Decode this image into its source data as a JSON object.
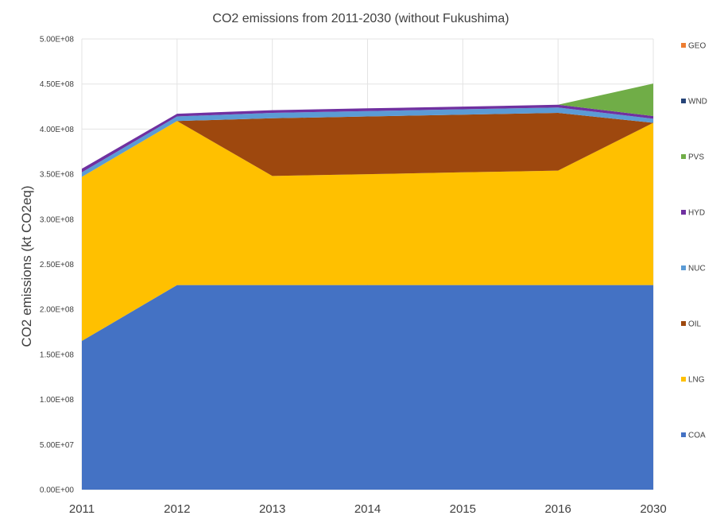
{
  "chart_data": {
    "type": "area",
    "stacked": true,
    "title": "CO2 emissions from 2011-2030 (without Fukushima)",
    "xlabel": "",
    "ylabel": "CO2 emissions (kt CO2eq)",
    "categories": [
      "2011",
      "2012",
      "2013",
      "2014",
      "2015",
      "2016",
      "2030"
    ],
    "ylim": [
      0,
      500000000
    ],
    "yticks": [
      0,
      50000000,
      100000000,
      150000000,
      200000000,
      250000000,
      300000000,
      350000000,
      400000000,
      450000000,
      500000000
    ],
    "ytick_labels": [
      "0.00E+00",
      "5.00E+07",
      "1.00E+08",
      "1.50E+08",
      "2.00E+08",
      "2.50E+08",
      "3.00E+08",
      "3.50E+08",
      "4.00E+08",
      "4.50E+08",
      "5.00E+08"
    ],
    "grid": true,
    "legend_position": "right",
    "series": [
      {
        "name": "COA",
        "color": "#4472C4",
        "values": [
          165000000,
          227000000,
          227000000,
          227000000,
          227000000,
          227000000,
          227000000
        ]
      },
      {
        "name": "LNG",
        "color": "#FFC000",
        "values": [
          182000000,
          182000000,
          121000000,
          123000000,
          125000000,
          127000000,
          180000000
        ]
      },
      {
        "name": "OIL",
        "color": "#9E480E",
        "values": [
          0,
          0,
          64000000,
          64000000,
          64000000,
          64000000,
          0
        ]
      },
      {
        "name": "NUC",
        "color": "#5B9BD5",
        "values": [
          5000000,
          5000000,
          6000000,
          6000000,
          6000000,
          6000000,
          4500000
        ]
      },
      {
        "name": "HYD",
        "color": "#7030A0",
        "values": [
          4000000,
          3000000,
          3000000,
          3000000,
          3000000,
          3000000,
          3000000
        ]
      },
      {
        "name": "PVS",
        "color": "#70AD47",
        "values": [
          0,
          0,
          0,
          0,
          0,
          0,
          36000000
        ]
      },
      {
        "name": "WND",
        "color": "#264478",
        "values": [
          0,
          0,
          0,
          0,
          0,
          0,
          0
        ]
      },
      {
        "name": "GEO",
        "color": "#ED7D31",
        "values": [
          0,
          0,
          0,
          0,
          0,
          0,
          0
        ]
      }
    ]
  }
}
